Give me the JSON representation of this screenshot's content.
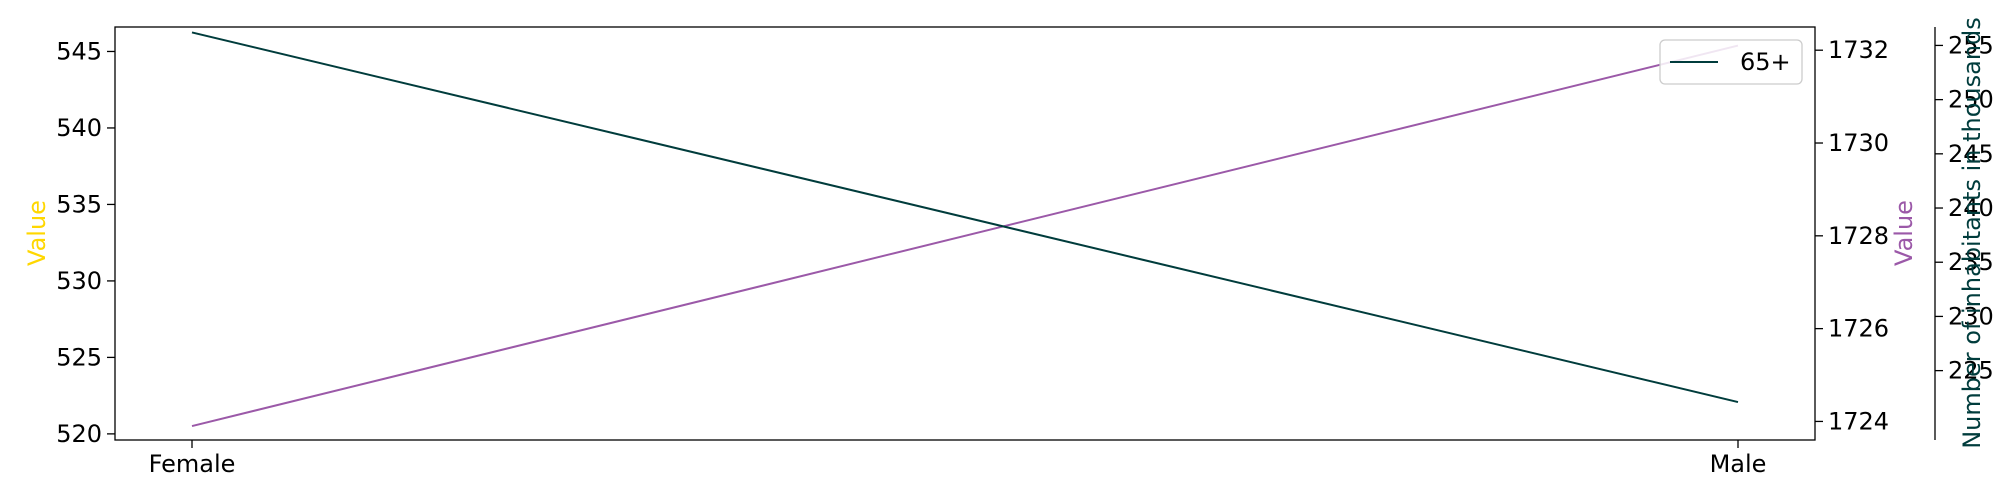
{
  "chart_data": {
    "type": "line",
    "categories": [
      "Female",
      "Male"
    ],
    "axes": {
      "left": {
        "label": "Value",
        "color": "#ffd700",
        "ticks": [
          520,
          525,
          530,
          535,
          540,
          545
        ],
        "ylim": [
          519.6,
          546.6
        ]
      },
      "right1": {
        "label": "Value",
        "color": "#9b59a8",
        "ticks": [
          1724,
          1726,
          1728,
          1730,
          1732
        ],
        "ylim": [
          1723.6,
          1732.5
        ]
      },
      "right2": {
        "label": "Number of inhabitants in thousands",
        "color": "#003c3c",
        "ticks": [
          225,
          230,
          235,
          240,
          245,
          250,
          255
        ],
        "ylim": [
          218.6,
          256.7
        ]
      }
    },
    "series": [
      {
        "axis": "right1",
        "color": "#9b59a8",
        "values": [
          1723.9,
          1732.1
        ]
      },
      {
        "name": "65+",
        "axis": "right2",
        "color": "#003c3c",
        "values": [
          256.2,
          222.1
        ]
      }
    ],
    "legend": {
      "position": "top-right"
    },
    "grid": false
  }
}
